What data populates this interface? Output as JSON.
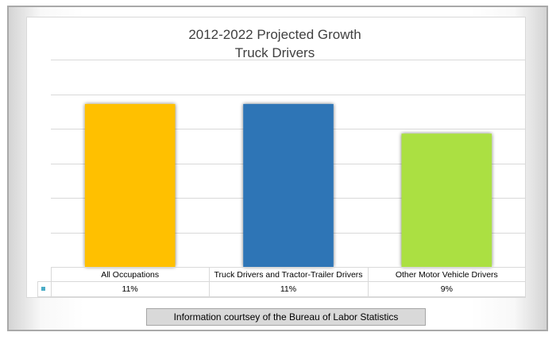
{
  "chart_data": {
    "type": "bar",
    "title": "2012-2022 Projected Growth",
    "subtitle": "Truck Drivers",
    "categories": [
      "All Occupations",
      "Truck Drivers and Tractor-Trailer Drivers",
      "Other Motor Vehicle Drivers"
    ],
    "values": [
      11,
      11,
      9
    ],
    "value_labels": [
      "11%",
      "11%",
      "9%"
    ],
    "colors": [
      "#FFC000",
      "#2E75B6",
      "#ABE042"
    ],
    "ylim": [
      0,
      14
    ],
    "grid": true,
    "data_table": true,
    "legend_key_color": "#4BACC6"
  },
  "footer": {
    "credit": "Information courtsey of the Bureau of Labor Statistics"
  }
}
